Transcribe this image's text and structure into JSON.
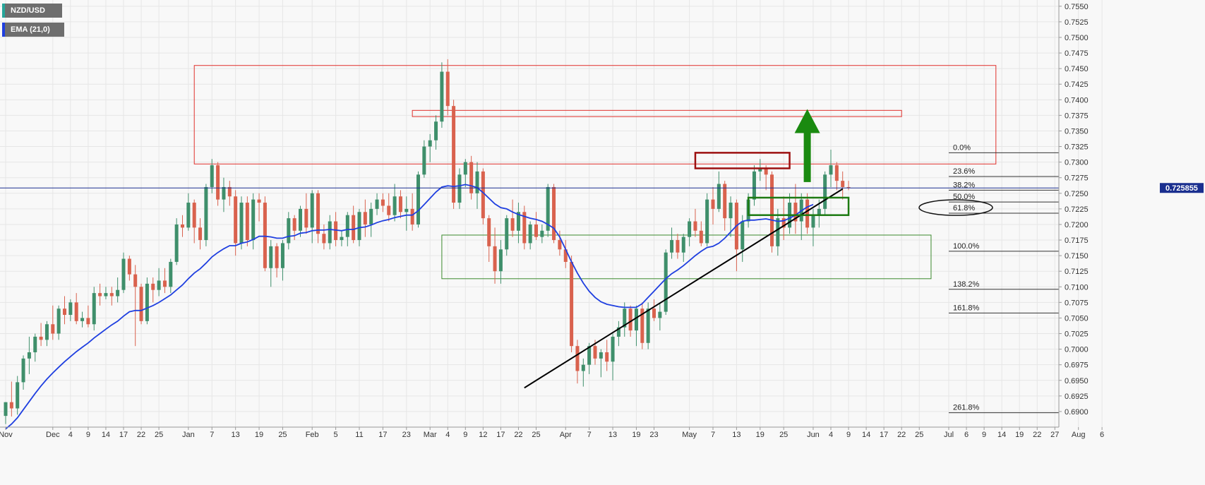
{
  "legend": {
    "symbol": "NZD/USD",
    "indicator": "EMA (21,0)",
    "symbol_color": "#26a69a",
    "indicator_color": "#1f3fe0"
  },
  "price_label": "0.725855",
  "colors": {
    "up": "#3f8f6b",
    "down": "#d9624e",
    "ema": "#1f3fe0",
    "trendline": "#000000",
    "resistance_zone": "#e0302b",
    "support_zone": "#3b8a2e",
    "breakout_box_red": "#9c1010",
    "breakout_box_green": "#1d7a12",
    "arrow": "#1a8a10",
    "price_line": "#1a2f8f",
    "price_label_bg": "#1a2f8f"
  },
  "chart_data": {
    "type": "candlestick",
    "symbol": "NZD/USD",
    "timeframe": "daily",
    "ylim": [
      0.6875,
      0.756
    ],
    "y_ticks": [
      "0.7550",
      "0.7525",
      "0.7500",
      "0.7475",
      "0.7450",
      "0.7425",
      "0.7400",
      "0.7375",
      "0.7350",
      "0.7325",
      "0.7300",
      "0.7275",
      "0.7250",
      "0.7225",
      "0.7200",
      "0.7175",
      "0.7150",
      "0.7125",
      "0.7100",
      "0.7075",
      "0.7050",
      "0.7025",
      "0.7000",
      "0.6975",
      "0.6950",
      "0.6925",
      "0.6900"
    ],
    "x_ticks": [
      {
        "label": "Nov",
        "bar": 0
      },
      {
        "label": "Dec",
        "bar": 8
      },
      {
        "label": "4",
        "bar": 11
      },
      {
        "label": "9",
        "bar": 14
      },
      {
        "label": "14",
        "bar": 17
      },
      {
        "label": "17",
        "bar": 20
      },
      {
        "label": "22",
        "bar": 23
      },
      {
        "label": "25",
        "bar": 26
      },
      {
        "label": "Jan",
        "bar": 31
      },
      {
        "label": "7",
        "bar": 35
      },
      {
        "label": "13",
        "bar": 39
      },
      {
        "label": "19",
        "bar": 43
      },
      {
        "label": "25",
        "bar": 47
      },
      {
        "label": "Feb",
        "bar": 52
      },
      {
        "label": "5",
        "bar": 56
      },
      {
        "label": "11",
        "bar": 60
      },
      {
        "label": "17",
        "bar": 64
      },
      {
        "label": "23",
        "bar": 68
      },
      {
        "label": "Mar",
        "bar": 72
      },
      {
        "label": "4",
        "bar": 75
      },
      {
        "label": "9",
        "bar": 78
      },
      {
        "label": "12",
        "bar": 81
      },
      {
        "label": "17",
        "bar": 84
      },
      {
        "label": "22",
        "bar": 87
      },
      {
        "label": "25",
        "bar": 90
      },
      {
        "label": "Apr",
        "bar": 95
      },
      {
        "label": "7",
        "bar": 99
      },
      {
        "label": "13",
        "bar": 103
      },
      {
        "label": "19",
        "bar": 107
      },
      {
        "label": "23",
        "bar": 110
      },
      {
        "label": "May",
        "bar": 116
      },
      {
        "label": "7",
        "bar": 120
      },
      {
        "label": "13",
        "bar": 124
      },
      {
        "label": "19",
        "bar": 128
      },
      {
        "label": "25",
        "bar": 132
      },
      {
        "label": "Jun",
        "bar": 137
      },
      {
        "label": "4",
        "bar": 140
      },
      {
        "label": "9",
        "bar": 143
      },
      {
        "label": "14",
        "bar": 146
      },
      {
        "label": "17",
        "bar": 149
      },
      {
        "label": "22",
        "bar": 152
      },
      {
        "label": "25",
        "bar": 155
      },
      {
        "label": "Jul",
        "bar": 160
      },
      {
        "label": "6",
        "bar": 163
      },
      {
        "label": "9",
        "bar": 166
      },
      {
        "label": "14",
        "bar": 169
      },
      {
        "label": "19",
        "bar": 172
      },
      {
        "label": "22",
        "bar": 175
      },
      {
        "label": "27",
        "bar": 178
      },
      {
        "label": "Aug",
        "bar": 182
      },
      {
        "label": "6",
        "bar": 186
      }
    ],
    "candles": [
      [
        0.6893,
        0.6915,
        0.688,
        0.6915
      ],
      [
        0.6915,
        0.6948,
        0.6892,
        0.6905
      ],
      [
        0.6905,
        0.6957,
        0.6895,
        0.6947
      ],
      [
        0.6947,
        0.699,
        0.6935,
        0.6985
      ],
      [
        0.6985,
        0.702,
        0.696,
        0.6995
      ],
      [
        0.6995,
        0.7025,
        0.698,
        0.702
      ],
      [
        0.702,
        0.7042,
        0.7005,
        0.7015
      ],
      [
        0.7015,
        0.7045,
        0.7005,
        0.704
      ],
      [
        0.704,
        0.707,
        0.7015,
        0.7025
      ],
      [
        0.7025,
        0.707,
        0.7015,
        0.7065
      ],
      [
        0.7065,
        0.7085,
        0.704,
        0.7055
      ],
      [
        0.7055,
        0.708,
        0.7045,
        0.7075
      ],
      [
        0.7075,
        0.709,
        0.704,
        0.7045
      ],
      [
        0.7045,
        0.706,
        0.7035,
        0.705
      ],
      [
        0.705,
        0.707,
        0.7035,
        0.704
      ],
      [
        0.704,
        0.71,
        0.703,
        0.709
      ],
      [
        0.709,
        0.7105,
        0.707,
        0.7085
      ],
      [
        0.7085,
        0.71,
        0.708,
        0.709
      ],
      [
        0.709,
        0.71,
        0.707,
        0.7085
      ],
      [
        0.7085,
        0.7115,
        0.7075,
        0.7095
      ],
      [
        0.7095,
        0.7155,
        0.709,
        0.7145
      ],
      [
        0.7145,
        0.715,
        0.711,
        0.712
      ],
      [
        0.712,
        0.7135,
        0.7005,
        0.71
      ],
      [
        0.71,
        0.7105,
        0.704,
        0.7045
      ],
      [
        0.7045,
        0.7115,
        0.704,
        0.7105
      ],
      [
        0.7105,
        0.7115,
        0.7075,
        0.7095
      ],
      [
        0.7095,
        0.713,
        0.7085,
        0.711
      ],
      [
        0.711,
        0.713,
        0.709,
        0.71
      ],
      [
        0.71,
        0.7145,
        0.709,
        0.714
      ],
      [
        0.714,
        0.721,
        0.7135,
        0.72
      ],
      [
        0.72,
        0.7215,
        0.718,
        0.7195
      ],
      [
        0.7195,
        0.725,
        0.719,
        0.7235
      ],
      [
        0.7235,
        0.724,
        0.717,
        0.7195
      ],
      [
        0.7195,
        0.721,
        0.716,
        0.7175
      ],
      [
        0.7175,
        0.7265,
        0.7165,
        0.726
      ],
      [
        0.726,
        0.7305,
        0.725,
        0.7295
      ],
      [
        0.7295,
        0.73,
        0.723,
        0.724
      ],
      [
        0.724,
        0.7275,
        0.722,
        0.726
      ],
      [
        0.726,
        0.727,
        0.723,
        0.7245
      ],
      [
        0.7245,
        0.7255,
        0.715,
        0.717
      ],
      [
        0.717,
        0.7245,
        0.716,
        0.7235
      ],
      [
        0.7235,
        0.7245,
        0.7165,
        0.7175
      ],
      [
        0.7175,
        0.725,
        0.716,
        0.724
      ],
      [
        0.724,
        0.725,
        0.7205,
        0.7235
      ],
      [
        0.7235,
        0.7245,
        0.7125,
        0.713
      ],
      [
        0.713,
        0.7175,
        0.71,
        0.7165
      ],
      [
        0.7165,
        0.717,
        0.7115,
        0.713
      ],
      [
        0.713,
        0.7175,
        0.711,
        0.717
      ],
      [
        0.717,
        0.722,
        0.716,
        0.721
      ],
      [
        0.721,
        0.7215,
        0.7175,
        0.719
      ],
      [
        0.719,
        0.723,
        0.718,
        0.7225
      ],
      [
        0.7225,
        0.725,
        0.7185,
        0.7195
      ],
      [
        0.7195,
        0.7255,
        0.717,
        0.725
      ],
      [
        0.725,
        0.7255,
        0.717,
        0.7185
      ],
      [
        0.7185,
        0.72,
        0.716,
        0.717
      ],
      [
        0.717,
        0.7215,
        0.716,
        0.7205
      ],
      [
        0.7205,
        0.722,
        0.7165,
        0.7175
      ],
      [
        0.7175,
        0.719,
        0.7165,
        0.718
      ],
      [
        0.718,
        0.722,
        0.7165,
        0.7215
      ],
      [
        0.7215,
        0.723,
        0.717,
        0.7175
      ],
      [
        0.7175,
        0.7225,
        0.7165,
        0.722
      ],
      [
        0.722,
        0.724,
        0.718,
        0.72
      ],
      [
        0.72,
        0.7235,
        0.718,
        0.7225
      ],
      [
        0.7225,
        0.725,
        0.7215,
        0.724
      ],
      [
        0.724,
        0.725,
        0.722,
        0.723
      ],
      [
        0.723,
        0.725,
        0.7205,
        0.7215
      ],
      [
        0.7215,
        0.7265,
        0.7205,
        0.7245
      ],
      [
        0.7245,
        0.7255,
        0.721,
        0.722
      ],
      [
        0.722,
        0.7245,
        0.719,
        0.7225
      ],
      [
        0.7225,
        0.725,
        0.719,
        0.72
      ],
      [
        0.72,
        0.7285,
        0.7195,
        0.728
      ],
      [
        0.728,
        0.7335,
        0.7275,
        0.7325
      ],
      [
        0.7325,
        0.7345,
        0.73,
        0.7335
      ],
      [
        0.7335,
        0.7375,
        0.732,
        0.7365
      ],
      [
        0.7365,
        0.746,
        0.7355,
        0.7445
      ],
      [
        0.7445,
        0.7465,
        0.7375,
        0.739
      ],
      [
        0.739,
        0.74,
        0.7225,
        0.7235
      ],
      [
        0.7235,
        0.729,
        0.7225,
        0.728
      ],
      [
        0.728,
        0.7305,
        0.726,
        0.73
      ],
      [
        0.73,
        0.731,
        0.724,
        0.725
      ],
      [
        0.725,
        0.73,
        0.7225,
        0.7285
      ],
      [
        0.7285,
        0.729,
        0.72,
        0.721
      ],
      [
        0.721,
        0.7215,
        0.714,
        0.7165
      ],
      [
        0.7165,
        0.7195,
        0.7105,
        0.7125
      ],
      [
        0.7125,
        0.7175,
        0.7105,
        0.716
      ],
      [
        0.716,
        0.7215,
        0.715,
        0.721
      ],
      [
        0.721,
        0.724,
        0.718,
        0.719
      ],
      [
        0.719,
        0.7235,
        0.717,
        0.722
      ],
      [
        0.722,
        0.723,
        0.716,
        0.717
      ],
      [
        0.717,
        0.7205,
        0.716,
        0.72
      ],
      [
        0.72,
        0.722,
        0.7175,
        0.718
      ],
      [
        0.718,
        0.72,
        0.717,
        0.719
      ],
      [
        0.719,
        0.7265,
        0.718,
        0.726
      ],
      [
        0.726,
        0.7265,
        0.717,
        0.7175
      ],
      [
        0.7175,
        0.719,
        0.715,
        0.716
      ],
      [
        0.716,
        0.7175,
        0.713,
        0.714
      ],
      [
        0.714,
        0.715,
        0.6995,
        0.7005
      ],
      [
        0.7005,
        0.7015,
        0.6945,
        0.6965
      ],
      [
        0.6965,
        0.6985,
        0.694,
        0.6975
      ],
      [
        0.6975,
        0.701,
        0.696,
        0.7005
      ],
      [
        0.7005,
        0.7015,
        0.6975,
        0.6985
      ],
      [
        0.6985,
        0.7,
        0.6955,
        0.6995
      ],
      [
        0.6995,
        0.7015,
        0.6965,
        0.698
      ],
      [
        0.698,
        0.7025,
        0.695,
        0.702
      ],
      [
        0.702,
        0.7045,
        0.7005,
        0.7035
      ],
      [
        0.7035,
        0.7075,
        0.702,
        0.7065
      ],
      [
        0.7065,
        0.707,
        0.702,
        0.703
      ],
      [
        0.703,
        0.707,
        0.7005,
        0.7065
      ],
      [
        0.7065,
        0.7075,
        0.7,
        0.701
      ],
      [
        0.701,
        0.7075,
        0.7,
        0.7065
      ],
      [
        0.7065,
        0.708,
        0.7045,
        0.705
      ],
      [
        0.705,
        0.7075,
        0.703,
        0.706
      ],
      [
        0.706,
        0.716,
        0.7055,
        0.7155
      ],
      [
        0.7155,
        0.7195,
        0.7145,
        0.7175
      ],
      [
        0.7175,
        0.7185,
        0.7145,
        0.7155
      ],
      [
        0.7155,
        0.7185,
        0.714,
        0.718
      ],
      [
        0.718,
        0.721,
        0.7165,
        0.7205
      ],
      [
        0.7205,
        0.7225,
        0.718,
        0.719
      ],
      [
        0.719,
        0.7205,
        0.7165,
        0.717
      ],
      [
        0.717,
        0.725,
        0.7165,
        0.724
      ],
      [
        0.724,
        0.726,
        0.72,
        0.7225
      ],
      [
        0.7225,
        0.7285,
        0.722,
        0.7265
      ],
      [
        0.7265,
        0.727,
        0.719,
        0.721
      ],
      [
        0.721,
        0.7245,
        0.718,
        0.7235
      ],
      [
        0.7235,
        0.724,
        0.7125,
        0.716
      ],
      [
        0.716,
        0.7215,
        0.714,
        0.7205
      ],
      [
        0.7205,
        0.725,
        0.7195,
        0.724
      ],
      [
        0.724,
        0.7295,
        0.723,
        0.7285
      ],
      [
        0.7285,
        0.7305,
        0.727,
        0.729
      ],
      [
        0.729,
        0.7295,
        0.7255,
        0.728
      ],
      [
        0.728,
        0.7285,
        0.7155,
        0.7165
      ],
      [
        0.7165,
        0.7225,
        0.715,
        0.721
      ],
      [
        0.721,
        0.7245,
        0.7175,
        0.7195
      ],
      [
        0.7195,
        0.725,
        0.7185,
        0.7235
      ],
      [
        0.7235,
        0.7265,
        0.7185,
        0.7205
      ],
      [
        0.7205,
        0.725,
        0.7175,
        0.724
      ],
      [
        0.724,
        0.725,
        0.7185,
        0.7195
      ],
      [
        0.7195,
        0.7225,
        0.7165,
        0.7215
      ],
      [
        0.7215,
        0.724,
        0.7195,
        0.7225
      ],
      [
        0.7225,
        0.7285,
        0.7215,
        0.728
      ],
      [
        0.728,
        0.732,
        0.726,
        0.7295
      ],
      [
        0.7295,
        0.73,
        0.7255,
        0.727
      ],
      [
        0.727,
        0.7285,
        0.724,
        0.726
      ],
      [
        0.726,
        0.727,
        0.7255,
        0.7259
      ]
    ],
    "ema_21": [
      0.6872,
      0.688,
      0.689,
      0.6903,
      0.6916,
      0.6929,
      0.6941,
      0.6952,
      0.6962,
      0.6971,
      0.698,
      0.6988,
      0.6996,
      0.7003,
      0.701,
      0.7018,
      0.7025,
      0.7032,
      0.7039,
      0.7045,
      0.7053,
      0.706,
      0.7062,
      0.7062,
      0.7066,
      0.707,
      0.7075,
      0.7081,
      0.7087,
      0.7095,
      0.7103,
      0.7113,
      0.7122,
      0.7129,
      0.7138,
      0.7148,
      0.7155,
      0.7161,
      0.7166,
      0.7166,
      0.717,
      0.7172,
      0.7176,
      0.7181,
      0.7181,
      0.718,
      0.7178,
      0.7178,
      0.7181,
      0.7182,
      0.7186,
      0.7187,
      0.719,
      0.7191,
      0.7191,
      0.7192,
      0.7191,
      0.719,
      0.7192,
      0.7192,
      0.7195,
      0.7196,
      0.7199,
      0.7203,
      0.7206,
      0.7208,
      0.7211,
      0.7213,
      0.7215,
      0.7215,
      0.7222,
      0.7232,
      0.7242,
      0.7252,
      0.726,
      0.7262,
      0.7261,
      0.7262,
      0.7264,
      0.7262,
      0.7259,
      0.7251,
      0.7242,
      0.7233,
      0.7227,
      0.7225,
      0.722,
      0.7216,
      0.7213,
      0.721,
      0.7208,
      0.7205,
      0.72,
      0.7194,
      0.718,
      0.716,
      0.714,
      0.7122,
      0.7106,
      0.7093,
      0.7083,
      0.7076,
      0.7072,
      0.707,
      0.7068,
      0.7067,
      0.7067,
      0.7067,
      0.7073,
      0.7083,
      0.7093,
      0.7103,
      0.7113,
      0.7121,
      0.7127,
      0.7134,
      0.7142,
      0.715,
      0.7157,
      0.7163,
      0.7165,
      0.717,
      0.7178,
      0.7188,
      0.7198,
      0.7205,
      0.7207,
      0.7207,
      0.7208,
      0.7209,
      0.7207,
      0.7205,
      0.7206,
      0.721,
      0.7215,
      0.7222,
      0.7228,
      0.7232
    ],
    "fibonacci": [
      {
        "label": "0.0%",
        "price": 0.7315
      },
      {
        "label": "23.6%",
        "price": 0.7277
      },
      {
        "label": "38.2%",
        "price": 0.7255
      },
      {
        "label": "50.0%",
        "price": 0.7236
      },
      {
        "label": "61.8%",
        "price": 0.7218
      },
      {
        "label": "100.0%",
        "price": 0.7157
      },
      {
        "label": "138.2%",
        "price": 0.7096
      },
      {
        "label": "161.8%",
        "price": 0.7058
      },
      {
        "label": "261.8%",
        "price": 0.6898
      }
    ],
    "zones": [
      {
        "name": "resistance-zone-outer",
        "bar_from": 32,
        "bar_to": 168,
        "price_top": 0.7455,
        "price_bottom": 0.7297
      },
      {
        "name": "resistance-zone-inner",
        "bar_from": 69,
        "bar_to": 152,
        "price_top": 0.7383,
        "price_bottom": 0.7373
      },
      {
        "name": "support-zone",
        "bar_from": 74,
        "bar_to": 157,
        "price_top": 0.7183,
        "price_bottom": 0.7113
      }
    ],
    "breakout_boxes": [
      {
        "name": "red-breakout-box",
        "bar_from": 117,
        "bar_to": 133,
        "price_top": 0.7315,
        "price_bottom": 0.729
      },
      {
        "name": "green-breakout-box",
        "bar_from": 126,
        "bar_to": 143,
        "price_top": 0.7243,
        "price_bottom": 0.7215
      }
    ],
    "trendline": {
      "from": {
        "bar": 88,
        "price": 0.6938
      },
      "to": {
        "bar": 142,
        "price": 0.7257
      }
    },
    "arrow": {
      "bar": 136,
      "price_from": 0.7268,
      "price_to": 0.7385
    },
    "highlighted_fib": "61.8%",
    "last_price": 0.725855
  }
}
